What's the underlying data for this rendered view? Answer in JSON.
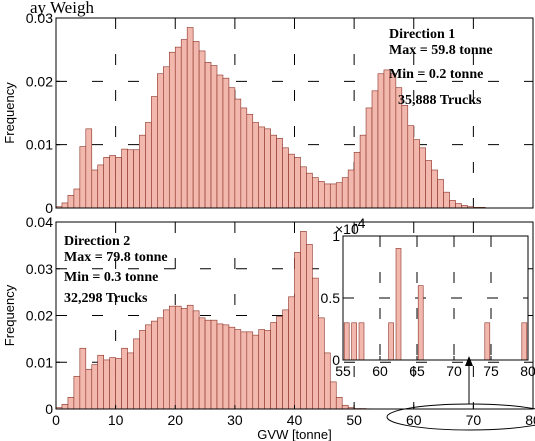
{
  "top_fragment": "ay Weigh",
  "chart_data": [
    {
      "type": "bar",
      "ylabel": "Frequency",
      "xlim": [
        0,
        80
      ],
      "ylim": [
        0,
        0.03
      ],
      "yticks": [
        "0",
        "0.01",
        "0.02",
        "0.03"
      ],
      "grid": true,
      "annotation": [
        "Direction 1",
        "Max = 59.8 tonne",
        "Min = 0.2 tonne",
        "35,888 Trucks"
      ],
      "bin_width": 1,
      "x_start": 0,
      "values": [
        0.0002,
        0.0008,
        0.002,
        0.003,
        0.0097,
        0.0125,
        0.006,
        0.0068,
        0.008,
        0.0083,
        0.008,
        0.0093,
        0.0092,
        0.0092,
        0.0115,
        0.0135,
        0.0176,
        0.0212,
        0.0223,
        0.0246,
        0.0254,
        0.0266,
        0.0285,
        0.0263,
        0.0248,
        0.023,
        0.0225,
        0.021,
        0.0205,
        0.019,
        0.0172,
        0.0158,
        0.0148,
        0.0135,
        0.0128,
        0.0125,
        0.0115,
        0.011,
        0.0095,
        0.0085,
        0.008,
        0.0065,
        0.0055,
        0.0048,
        0.0042,
        0.0038,
        0.0038,
        0.004,
        0.0048,
        0.006,
        0.0088,
        0.0115,
        0.0158,
        0.0185,
        0.0212,
        0.0218,
        0.0212,
        0.019,
        0.0162,
        0.013,
        0.0108,
        0.0095,
        0.0075,
        0.006,
        0.0045,
        0.0025,
        0.0012,
        0.0007,
        0.0004,
        0.0002,
        0.0001,
        0.0001
      ]
    },
    {
      "type": "bar",
      "xlabel": "GVW [tonne]",
      "ylabel": "Frequency",
      "xlim": [
        0,
        80
      ],
      "ylim": [
        0,
        0.04
      ],
      "xticks": [
        "0",
        "10",
        "20",
        "30",
        "40",
        "50",
        "60",
        "70",
        "80"
      ],
      "yticks": [
        "0",
        "0.01",
        "0.02",
        "0.03",
        "0.04"
      ],
      "grid": true,
      "annotation": [
        "Direction 2",
        "Max = 79.8 tonne",
        "Min = 0.3 tonne",
        "32,298 Trucks"
      ],
      "bin_width": 1,
      "x_start": 0,
      "values": [
        0.0003,
        0.001,
        0.0025,
        0.007,
        0.013,
        0.0085,
        0.0095,
        0.0115,
        0.0105,
        0.011,
        0.0108,
        0.013,
        0.012,
        0.015,
        0.0168,
        0.018,
        0.0188,
        0.0195,
        0.0212,
        0.022,
        0.022,
        0.0215,
        0.0222,
        0.021,
        0.0195,
        0.019,
        0.019,
        0.0182,
        0.018,
        0.0175,
        0.017,
        0.0165,
        0.0165,
        0.0158,
        0.017,
        0.0168,
        0.0185,
        0.0198,
        0.0212,
        0.024,
        0.0335,
        0.038,
        0.0352,
        0.028,
        0.0195,
        0.012,
        0.0058,
        0.0025,
        0.0008,
        0.0003,
        0.0001,
        0.0001,
        5e-05,
        4e-05,
        4e-05,
        3e-05,
        3e-05,
        3e-05,
        2e-05,
        2e-05,
        3e-05,
        2e-05,
        2e-05,
        2e-05,
        1e-05,
        1e-05
      ]
    },
    {
      "type": "bar",
      "note": "inset zoom of Direction 2 tail",
      "xlim": [
        55,
        80
      ],
      "ylim": [
        0,
        0.0001
      ],
      "xticks": [
        "55",
        "60",
        "65",
        "70",
        "75",
        "80"
      ],
      "yticks": [
        "0",
        "0.5",
        "1"
      ],
      "y_multiplier": "×10",
      "y_multiplier_exp": "-4",
      "grid": true,
      "bars": [
        {
          "x": 55.5,
          "y": 3e-05
        },
        {
          "x": 56.5,
          "y": 3e-05
        },
        {
          "x": 57.5,
          "y": 3e-05
        },
        {
          "x": 61.5,
          "y": 3e-05
        },
        {
          "x": 62.5,
          "y": 9e-05
        },
        {
          "x": 65.5,
          "y": 6e-05
        },
        {
          "x": 74.5,
          "y": 3e-05
        },
        {
          "x": 79.5,
          "y": 3e-05
        }
      ]
    }
  ]
}
